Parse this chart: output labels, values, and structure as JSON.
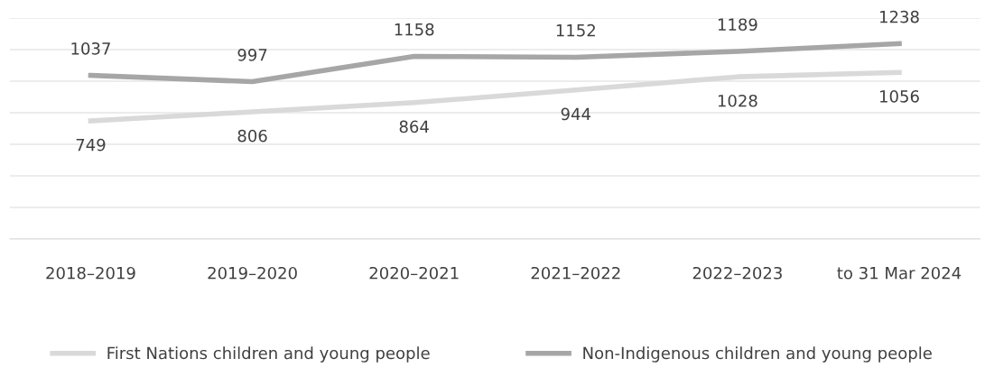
{
  "chart_data": {
    "type": "line",
    "categories": [
      "2018–2019",
      "2019–2020",
      "2020–2021",
      "2021–2022",
      "2022–2023",
      "to 31 Mar 2024"
    ],
    "series": [
      {
        "name": "First Nations children and young people",
        "color": "#d9d9d9",
        "values": [
          749,
          806,
          864,
          944,
          1028,
          1056
        ]
      },
      {
        "name": "Non-Indigenous children and young people",
        "color": "#a6a6a6",
        "values": [
          1037,
          997,
          1158,
          1152,
          1189,
          1238
        ]
      }
    ],
    "ylim": [
      0,
      1400
    ],
    "yticks": [
      {
        "value": 0,
        "label": null
      },
      {
        "value": 200,
        "label": null
      },
      {
        "value": 400,
        "label": null
      },
      {
        "value": 600,
        "label": null
      },
      {
        "value": 800,
        "label": null
      },
      {
        "value": 1000,
        "label": null
      },
      {
        "value": 1200,
        "label": null
      },
      {
        "value": 1400,
        "label": null
      }
    ],
    "tick_labels": "x",
    "grid": "y",
    "legend": "bottom",
    "data_labels": true,
    "marker": "none",
    "line_style": "solid"
  }
}
